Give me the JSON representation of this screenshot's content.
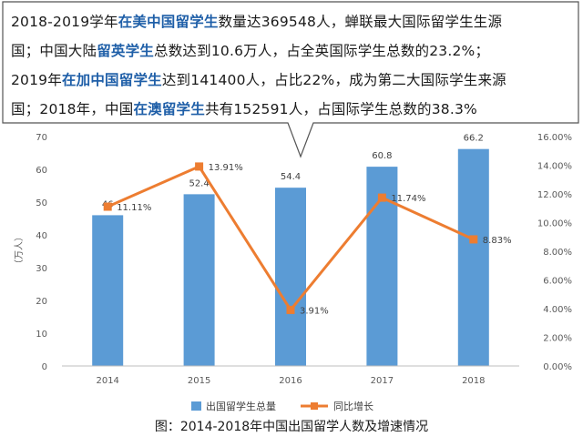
{
  "callout": {
    "lines": [
      [
        {
          "t": "2018-2019学年"
        },
        {
          "t": "在美中国留学生",
          "hl": true
        },
        {
          "t": "数量达369548人，蝉联最大国际留学生生源"
        }
      ],
      [
        {
          "t": "国；中国大陆"
        },
        {
          "t": "留英学生",
          "hl": true
        },
        {
          "t": "总数达到10.6万人，占全英国际学生总数的23.2%；"
        }
      ],
      [
        {
          "t": "2019年"
        },
        {
          "t": "在加中国留学生",
          "hl": true
        },
        {
          "t": "达到141400人，占比22%，成为第二大国际学生来源"
        }
      ],
      [
        {
          "t": "国；2018年，中国"
        },
        {
          "t": "在澳留学生",
          "hl": true
        },
        {
          "t": "共有152591人，占国际学生总数的38.3%"
        }
      ]
    ]
  },
  "chart_data": {
    "type": "bar+line",
    "categories": [
      "2014",
      "2015",
      "2016",
      "2017",
      "2018"
    ],
    "series": [
      {
        "name": "出国留学生总量",
        "type": "bar",
        "axis": "left",
        "values": [
          46,
          52.4,
          54.4,
          60.8,
          66.2
        ],
        "labels": [
          "46",
          "52.4",
          "54.4",
          "60.8",
          "66.2"
        ],
        "color": "#5b9bd5"
      },
      {
        "name": "同比增长",
        "type": "line",
        "axis": "right",
        "values": [
          11.11,
          13.91,
          3.91,
          11.74,
          8.83
        ],
        "labels": [
          "11.11%",
          "13.91%",
          "3.91%",
          "11.74%",
          "8.83%"
        ],
        "color": "#ed7d31"
      }
    ],
    "ylabel": "（万人）",
    "ylim": [
      0,
      70
    ],
    "y_ticks": [
      "0",
      "10",
      "20",
      "30",
      "40",
      "50",
      "60",
      "70"
    ],
    "y2lim": [
      0,
      16
    ],
    "y2_ticks": [
      "0.00%",
      "2.00%",
      "4.00%",
      "6.00%",
      "8.00%",
      "10.00%",
      "12.00%",
      "14.00%",
      "16.00%"
    ],
    "grid": false,
    "legend": "bottom"
  },
  "caption": "图：2014-2018年中国出国留学人数及增速情况"
}
